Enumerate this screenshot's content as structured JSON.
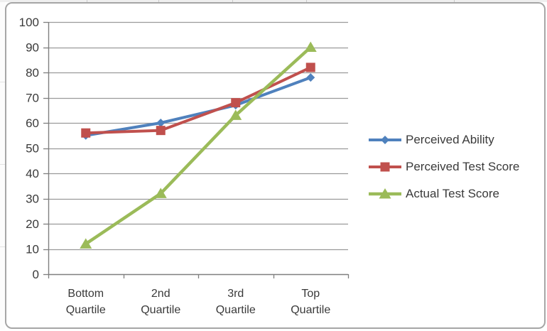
{
  "chart_data": {
    "type": "line",
    "title": "",
    "categories": [
      "Bottom Quartile",
      "2nd Quartile",
      "3rd Quartile",
      "Top Quartile"
    ],
    "series": [
      {
        "name": "Perceived Ability",
        "color": "#4F81BD",
        "marker": "diamond",
        "values": [
          55,
          60,
          67,
          78
        ]
      },
      {
        "name": "Perceived Test Score",
        "color": "#C0504D",
        "marker": "square",
        "values": [
          56,
          57,
          68,
          82
        ]
      },
      {
        "name": "Actual Test Score",
        "color": "#9BBB59",
        "marker": "triangle",
        "values": [
          12,
          32,
          63,
          90
        ]
      }
    ],
    "xlabel": "",
    "ylabel": "",
    "ylim": [
      0,
      100
    ],
    "y_ticks": [
      0,
      10,
      20,
      30,
      40,
      50,
      60,
      70,
      80,
      90,
      100
    ],
    "grid": true,
    "legend_position": "right"
  },
  "colors": {
    "gridline": "#9A9A9A",
    "axis": "#7F7F7F",
    "text": "#3A3A3A",
    "frame_border": "#A6A6A6",
    "chart_background": "#FFFFFF",
    "sheet_edge": "#EFEFEF",
    "sheet_line": "#C9C9C9"
  }
}
